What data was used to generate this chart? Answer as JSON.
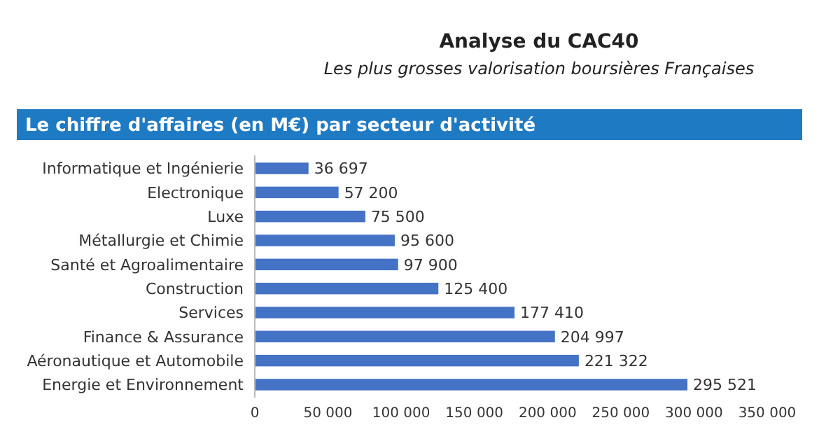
{
  "chart_data": {
    "type": "bar",
    "orientation": "horizontal",
    "title": "Analyse du CAC40",
    "subtitle": "Les plus grosses valorisation boursières Françaises",
    "annotations": [
      "Le chiffre d'affaires (en M€) par secteur d'activité"
    ],
    "categories": [
      "Informatique et Ingénierie",
      "Electronique",
      "Luxe",
      "Métallurgie et Chimie",
      "Santé et Agroalimentaire",
      "Construction",
      "Services",
      "Finance & Assurance",
      "Aéronautique et Automobile",
      "Energie et Environnement"
    ],
    "values": [
      36697,
      57200,
      75500,
      95600,
      97900,
      125400,
      177410,
      204997,
      221322,
      295521
    ],
    "value_labels": [
      "36 697",
      "57 200",
      "75 500",
      "95 600",
      "97 900",
      "125 400",
      "177 410",
      "204 997",
      "221 322",
      "295 521"
    ],
    "color": "#4472c4",
    "xlim": [
      0,
      350000
    ],
    "xticks": [
      {
        "value": 0,
        "label": "0"
      },
      {
        "value": 50000,
        "label": "50 000"
      },
      {
        "value": 100000,
        "label": "100 000"
      },
      {
        "value": 150000,
        "label": "150 000"
      },
      {
        "value": 200000,
        "label": "200 000"
      },
      {
        "value": 250000,
        "label": "250 000"
      },
      {
        "value": 300000,
        "label": "300 000"
      },
      {
        "value": 350000,
        "label": "350 000"
      }
    ],
    "grid": false
  }
}
